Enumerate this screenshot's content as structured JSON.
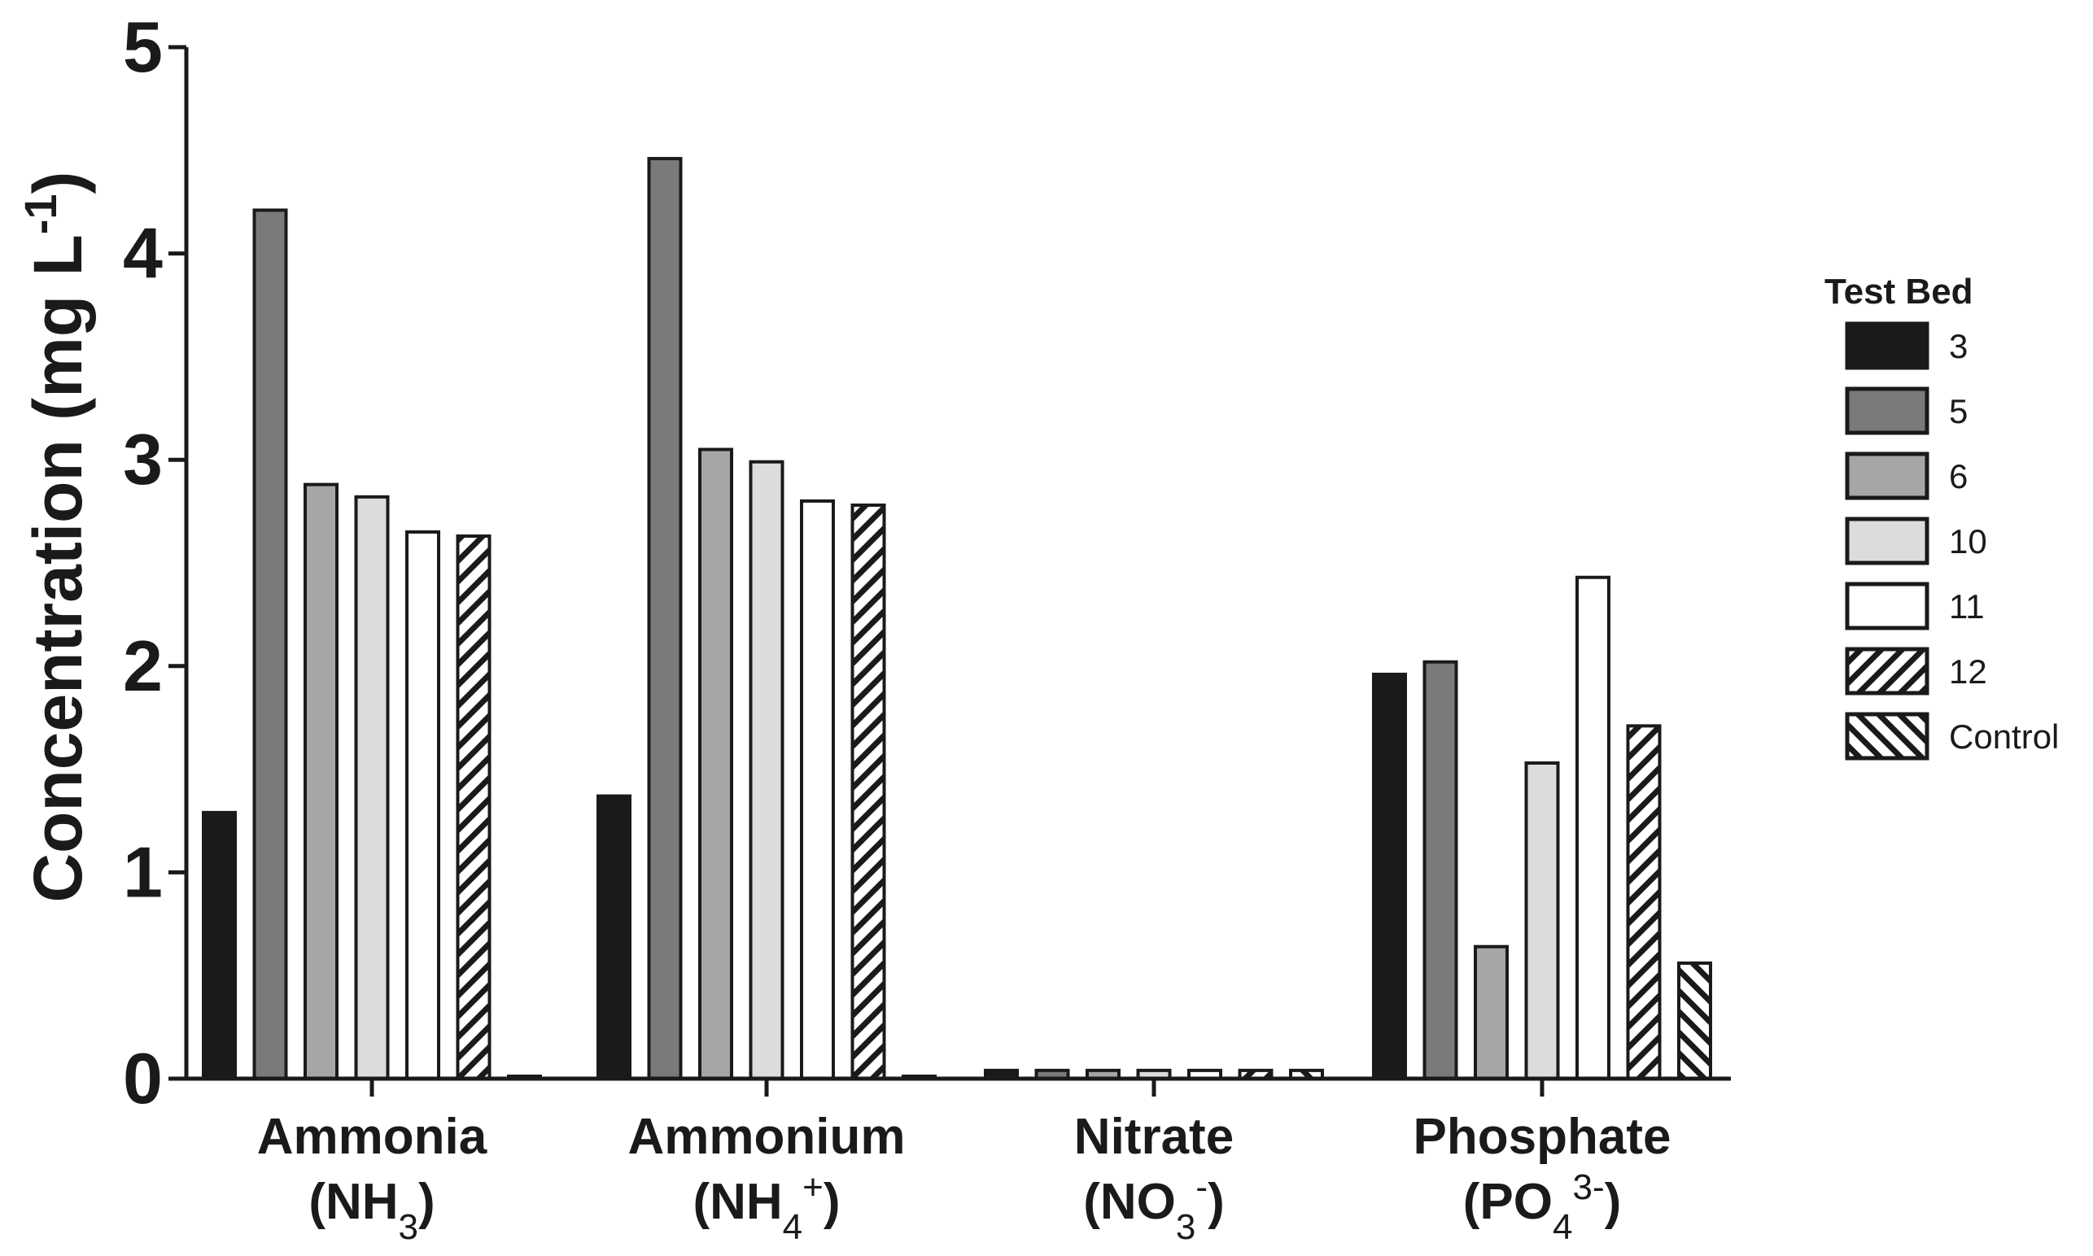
{
  "chart_data": {
    "type": "bar",
    "title": "",
    "xlabel": "",
    "ylabel": "Concentration (mg L-1)",
    "ylabel_parts": {
      "main": "Concentration (mg L",
      "sup": "-1",
      "close": ")"
    },
    "ylim": [
      0,
      5
    ],
    "yticks": [
      "0",
      "1",
      "2",
      "3",
      "4",
      "5"
    ],
    "grid": false,
    "legend_position": "right",
    "legend_title": "Test Bed",
    "categories": [
      {
        "name": "Ammonia",
        "formula": {
          "open": "(NH",
          "sub": "3",
          "sup": "",
          "close": ")"
        }
      },
      {
        "name": "Ammonium",
        "formula": {
          "open": "(NH",
          "sub": "4",
          "sup": "+",
          "close": ")"
        }
      },
      {
        "name": "Nitrate",
        "formula": {
          "open": "(NO",
          "sub": "3",
          "sup": "-",
          "close": ")"
        }
      },
      {
        "name": "Phosphate",
        "formula": {
          "open": "(PO",
          "sub": "4",
          "sup": "3-",
          "close": ")"
        }
      }
    ],
    "series": [
      {
        "name": "3",
        "fill": "#1a1a1a",
        "pattern": "none",
        "values": [
          1.29,
          1.37,
          0.04,
          1.96
        ]
      },
      {
        "name": "5",
        "fill": "#7a7a7a",
        "pattern": "none",
        "values": [
          4.21,
          4.46,
          0.04,
          2.02
        ]
      },
      {
        "name": "6",
        "fill": "#a6a6a6",
        "pattern": "none",
        "values": [
          2.88,
          3.05,
          0.04,
          0.64
        ]
      },
      {
        "name": "10",
        "fill": "#dcdcdc",
        "pattern": "none",
        "values": [
          2.82,
          2.99,
          0.04,
          1.53
        ]
      },
      {
        "name": "11",
        "fill": "#ffffff",
        "pattern": "none",
        "values": [
          2.65,
          2.8,
          0.04,
          2.43
        ]
      },
      {
        "name": "12",
        "fill": "#ffffff",
        "pattern": "diag-up",
        "values": [
          2.63,
          2.78,
          0.04,
          1.71
        ]
      },
      {
        "name": "Control",
        "fill": "#ffffff",
        "pattern": "diag-down",
        "values": [
          0.0,
          0.0,
          0.04,
          0.56
        ]
      }
    ]
  }
}
